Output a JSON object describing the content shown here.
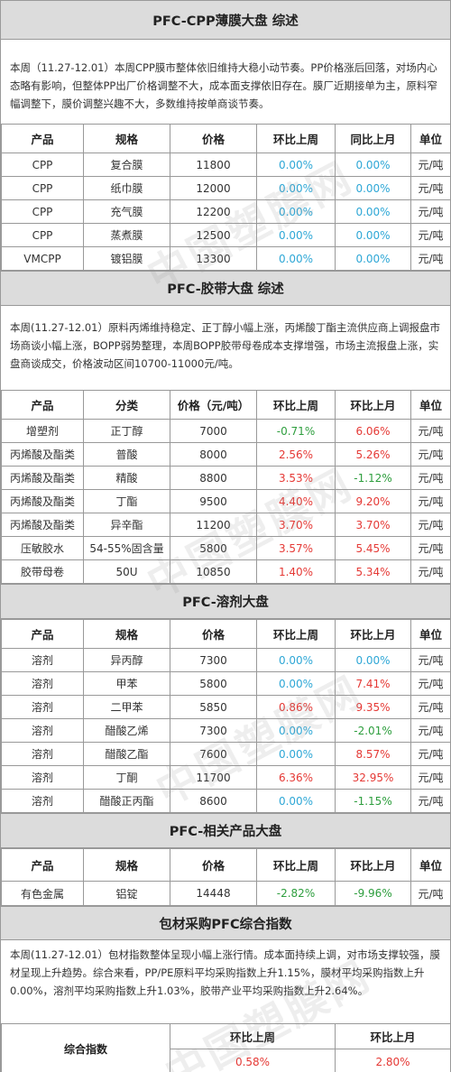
{
  "cpp": {
    "title": "PFC-CPP薄膜大盘 综述",
    "summary": "本周（11.27-12.01）本周CPP膜市整体依旧维持大稳小动节奏。PP价格涨后回落，对场内心态略有影响，但整体PP出厂价格调整不大，成本面支撑依旧存在。膜厂近期接单为主，原料窄幅调整下，膜价调整兴趣不大，多数维持按单商谈节奏。",
    "headers": [
      "产品",
      "规格",
      "价格",
      "环比上周",
      "同比上月",
      "单位"
    ],
    "rows": [
      {
        "product": "CPP",
        "spec": "复合膜",
        "price": "11800",
        "wow": "0.00%",
        "mom": "0.00%",
        "unit": "元/吨",
        "wow_c": "blue",
        "mom_c": "blue"
      },
      {
        "product": "CPP",
        "spec": "纸巾膜",
        "price": "12000",
        "wow": "0.00%",
        "mom": "0.00%",
        "unit": "元/吨",
        "wow_c": "blue",
        "mom_c": "blue"
      },
      {
        "product": "CPP",
        "spec": "充气膜",
        "price": "12200",
        "wow": "0.00%",
        "mom": "0.00%",
        "unit": "元/吨",
        "wow_c": "blue",
        "mom_c": "blue"
      },
      {
        "product": "CPP",
        "spec": "蒸煮膜",
        "price": "12500",
        "wow": "0.00%",
        "mom": "0.00%",
        "unit": "元/吨",
        "wow_c": "blue",
        "mom_c": "blue"
      },
      {
        "product": "VMCPP",
        "spec": "镀铝膜",
        "price": "13300",
        "wow": "0.00%",
        "mom": "0.00%",
        "unit": "元/吨",
        "wow_c": "blue",
        "mom_c": "blue"
      }
    ]
  },
  "tape": {
    "title": "PFC-胶带大盘 综述",
    "summary": "本周(11.27-12.01）原料丙烯维持稳定、正丁醇小幅上涨，丙烯酸丁酯主流供应商上调报盘市场商谈小幅上涨，BOPP弱势整理，本周BOPP胶带母卷成本支撑增强，市场主流报盘上涨，实盘商谈成交，价格波动区间10700-11000元/吨。",
    "headers": [
      "产品",
      "分类",
      "价格（元/吨）",
      "环比上周",
      "环比上月",
      "单位"
    ],
    "rows": [
      {
        "product": "增塑剂",
        "spec": "正丁醇",
        "price": "7000",
        "wow": "-0.71%",
        "mom": "6.06%",
        "unit": "元/吨",
        "wow_c": "green",
        "mom_c": "red"
      },
      {
        "product": "丙烯酸及酯类",
        "spec": "普酸",
        "price": "8000",
        "wow": "2.56%",
        "mom": "5.26%",
        "unit": "元/吨",
        "wow_c": "red",
        "mom_c": "red"
      },
      {
        "product": "丙烯酸及酯类",
        "spec": "精酸",
        "price": "8800",
        "wow": "3.53%",
        "mom": "-1.12%",
        "unit": "元/吨",
        "wow_c": "red",
        "mom_c": "green"
      },
      {
        "product": "丙烯酸及酯类",
        "spec": "丁酯",
        "price": "9500",
        "wow": "4.40%",
        "mom": "9.20%",
        "unit": "元/吨",
        "wow_c": "red",
        "mom_c": "red"
      },
      {
        "product": "丙烯酸及酯类",
        "spec": "异辛酯",
        "price": "11200",
        "wow": "3.70%",
        "mom": "3.70%",
        "unit": "元/吨",
        "wow_c": "red",
        "mom_c": "red"
      },
      {
        "product": "压敏胶水",
        "spec": "54-55%固含量",
        "price": "5800",
        "wow": "3.57%",
        "mom": "5.45%",
        "unit": "元/吨",
        "wow_c": "red",
        "mom_c": "red"
      },
      {
        "product": "胶带母卷",
        "spec": "50U",
        "price": "10850",
        "wow": "1.40%",
        "mom": "5.34%",
        "unit": "元/吨",
        "wow_c": "red",
        "mom_c": "red"
      }
    ]
  },
  "solvent": {
    "title": "PFC-溶剂大盘",
    "headers": [
      "产品",
      "规格",
      "价格",
      "环比上周",
      "环比上月",
      "单位"
    ],
    "rows": [
      {
        "product": "溶剂",
        "spec": "异丙醇",
        "price": "7300",
        "wow": "0.00%",
        "mom": "0.00%",
        "unit": "元/吨",
        "wow_c": "blue",
        "mom_c": "blue"
      },
      {
        "product": "溶剂",
        "spec": "甲苯",
        "price": "5800",
        "wow": "0.00%",
        "mom": "7.41%",
        "unit": "元/吨",
        "wow_c": "blue",
        "mom_c": "red"
      },
      {
        "product": "溶剂",
        "spec": "二甲苯",
        "price": "5850",
        "wow": "0.86%",
        "mom": "9.35%",
        "unit": "元/吨",
        "wow_c": "red",
        "mom_c": "red"
      },
      {
        "product": "溶剂",
        "spec": "醋酸乙烯",
        "price": "7300",
        "wow": "0.00%",
        "mom": "-2.01%",
        "unit": "元/吨",
        "wow_c": "blue",
        "mom_c": "green"
      },
      {
        "product": "溶剂",
        "spec": "醋酸乙酯",
        "price": "7600",
        "wow": "0.00%",
        "mom": "8.57%",
        "unit": "元/吨",
        "wow_c": "blue",
        "mom_c": "red"
      },
      {
        "product": "溶剂",
        "spec": "丁酮",
        "price": "11700",
        "wow": "6.36%",
        "mom": "32.95%",
        "unit": "元/吨",
        "wow_c": "red",
        "mom_c": "red"
      },
      {
        "product": "溶剂",
        "spec": "醋酸正丙酯",
        "price": "8600",
        "wow": "0.00%",
        "mom": "-1.15%",
        "unit": "元/吨",
        "wow_c": "blue",
        "mom_c": "green"
      }
    ]
  },
  "related": {
    "title": "PFC-相关产品大盘",
    "headers": [
      "产品",
      "规格",
      "价格",
      "环比上周",
      "环比上月",
      "单位"
    ],
    "rows": [
      {
        "product": "有色金属",
        "spec": "铝锭",
        "price": "14448",
        "wow": "-2.82%",
        "mom": "-9.96%",
        "unit": "元/吨",
        "wow_c": "green",
        "mom_c": "green"
      }
    ]
  },
  "index": {
    "title": "包材采购PFC综合指数",
    "summary": "本周(11.27-12.01）包材指数整体呈现小幅上涨行情。成本面持续上调，对市场支撑较强，膜材呈现上升趋势。综合来看，PP/PE原料平均采购指数上升1.15%，膜材平均采购指数上升0.00%，溶剂平均采购指数上升1.03%，胶带产业平均采购指数上升2.64%。",
    "label": "综合指数",
    "h_wow": "环比上周",
    "h_mom": "环比上月",
    "wow": "0.58%",
    "mom": "2.80%"
  },
  "watermark": "中国塑膜网",
  "colors": {
    "up": "#e53935",
    "down": "#2e9e3e",
    "flat": "#2ea7d6",
    "header_bg": "#dcdcdc"
  }
}
